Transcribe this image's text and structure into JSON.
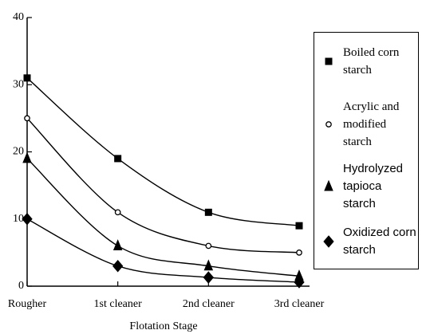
{
  "chart_data": {
    "type": "line",
    "x_label": "Flotation Stage",
    "categories": [
      "Rougher",
      "1st cleaner",
      "2nd cleaner",
      "3rd cleaner"
    ],
    "series": [
      {
        "name": "Boiled corn starch",
        "marker": "square",
        "color": "#000000",
        "values": [
          31,
          19,
          11,
          9
        ]
      },
      {
        "name": "Acrylic and modified starch",
        "marker": "circle",
        "color": "#000000",
        "values": [
          25,
          11,
          6,
          5
        ]
      },
      {
        "name": "Hydrolyzed tapioca starch",
        "marker": "triangle",
        "color": "#000000",
        "values": [
          19,
          6,
          3,
          1.5
        ]
      },
      {
        "name": "Oxidized corn starch",
        "marker": "diamond",
        "color": "#000000",
        "values": [
          10,
          3,
          1.3,
          0.6
        ]
      }
    ],
    "ylim": [
      0,
      40
    ],
    "yticks": [
      0,
      10,
      20,
      30,
      40
    ]
  }
}
